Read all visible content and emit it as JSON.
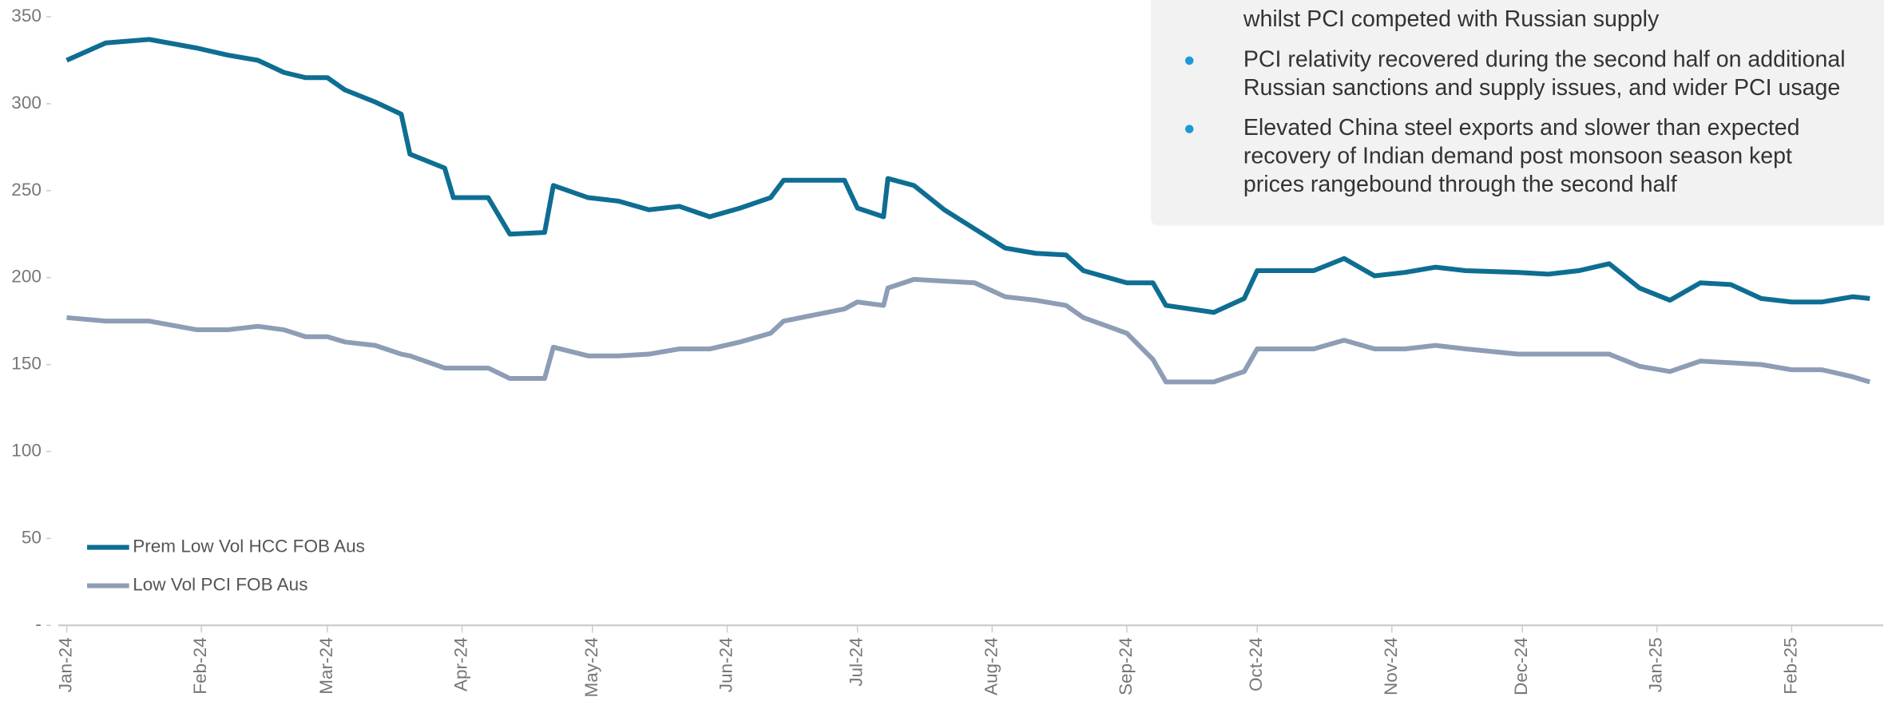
{
  "chart_data": {
    "type": "line",
    "x": [
      0,
      9,
      19,
      30,
      37,
      44,
      50,
      55,
      60,
      64,
      71,
      77,
      79,
      87,
      89,
      97,
      102,
      110,
      112,
      120,
      127,
      134,
      141,
      148,
      155,
      162,
      165,
      179,
      182,
      188,
      189,
      195,
      202,
      209,
      216,
      223,
      230,
      234,
      244,
      250,
      253,
      264,
      271,
      274,
      287,
      294,
      301,
      308,
      315,
      322,
      334,
      341,
      348,
      355,
      362,
      369,
      376,
      383,
      390,
      397,
      404,
      411,
      415
    ],
    "xlim": [
      0,
      417
    ],
    "xticks": [
      {
        "value": 0,
        "label": "Jan-24"
      },
      {
        "value": 31,
        "label": "Feb-24"
      },
      {
        "value": 60,
        "label": "Mar-24"
      },
      {
        "value": 91,
        "label": "Apr-24"
      },
      {
        "value": 121,
        "label": "May-24"
      },
      {
        "value": 152,
        "label": "Jun-24"
      },
      {
        "value": 182,
        "label": "Jul-24"
      },
      {
        "value": 213,
        "label": "Aug-24"
      },
      {
        "value": 244,
        "label": "Sep-24"
      },
      {
        "value": 274,
        "label": "Oct-24"
      },
      {
        "value": 305,
        "label": "Nov-24"
      },
      {
        "value": 335,
        "label": "Dec-24"
      },
      {
        "value": 366,
        "label": "Jan-25"
      },
      {
        "value": 397,
        "label": "Feb-25"
      }
    ],
    "ylim": [
      0,
      350
    ],
    "yticks": [
      {
        "value": 0,
        "label": "-"
      },
      50,
      100,
      150,
      200,
      250,
      300,
      350
    ],
    "legend": "lower left",
    "series": [
      {
        "name": "Prem Low Vol HCC FOB Aus",
        "color": "#0e6e92",
        "values": [
          325,
          335,
          337,
          332,
          328,
          325,
          318,
          315,
          315,
          308,
          301,
          294,
          271,
          263,
          246,
          246,
          225,
          226,
          253,
          246,
          244,
          239,
          241,
          235,
          240,
          246,
          256,
          256,
          240,
          235,
          257,
          253,
          239,
          228,
          217,
          214,
          213,
          204,
          197,
          197,
          184,
          180,
          188,
          204,
          204,
          211,
          201,
          203,
          206,
          204,
          203,
          202,
          204,
          208,
          194,
          187,
          197,
          196,
          188,
          186,
          186,
          189,
          188
        ]
      },
      {
        "name": "Low Vol PCI FOB Aus",
        "color": "#8d9db5",
        "values": [
          177,
          175,
          175,
          170,
          170,
          172,
          170,
          166,
          166,
          163,
          161,
          156,
          155,
          148,
          148,
          148,
          142,
          142,
          160,
          155,
          155,
          156,
          159,
          159,
          163,
          168,
          175,
          182,
          186,
          184,
          194,
          199,
          198,
          197,
          189,
          187,
          184,
          177,
          168,
          153,
          140,
          140,
          146,
          159,
          159,
          164,
          159,
          159,
          161,
          159,
          156,
          156,
          156,
          156,
          149,
          146,
          152,
          151,
          150,
          147,
          147,
          143,
          140
        ]
      }
    ],
    "annotations": [
      [
        "whilst PCI competed with Russian supply"
      ],
      [
        "PCI relativity recovered during the second half on additional",
        "Russian sanctions and supply issues, and wider PCI usage"
      ],
      [
        "Elevated China steel exports and slower than expected",
        "recovery of Indian demand post monsoon season kept",
        "prices rangebound through the second half"
      ]
    ]
  }
}
